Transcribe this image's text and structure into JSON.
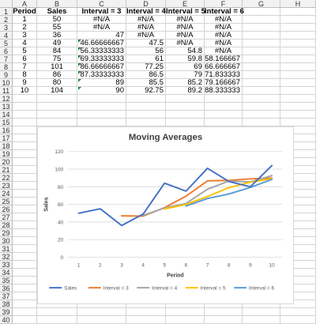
{
  "columns": [
    "A",
    "B",
    "C",
    "D",
    "E",
    "F",
    "G",
    "H"
  ],
  "rows": [
    "1",
    "2",
    "3",
    "4",
    "5",
    "6",
    "7",
    "8",
    "9",
    "10",
    "11",
    "12",
    "13",
    "14",
    "15",
    "16",
    "17",
    "18",
    "19",
    "20",
    "21",
    "22",
    "23",
    "24",
    "25",
    "26",
    "27",
    "28",
    "29",
    "30",
    "31",
    "32",
    "33",
    "34",
    "35",
    "36",
    "37",
    "38",
    "39",
    "40"
  ],
  "header": {
    "A": "Period",
    "B": "Sales",
    "C": "Interval = 3",
    "D": "Interval = 4",
    "E": "Interval = 5",
    "F": "Interval = 6"
  },
  "table": [
    {
      "A": "1",
      "B": "50",
      "C": "#N/A",
      "D": "#N/A",
      "E": "#N/A",
      "F": "#N/A"
    },
    {
      "A": "2",
      "B": "55",
      "C": "#N/A",
      "D": "#N/A",
      "E": "#N/A",
      "F": "#N/A"
    },
    {
      "A": "3",
      "B": "36",
      "C": "47",
      "D": "#N/A",
      "E": "#N/A",
      "F": "#N/A"
    },
    {
      "A": "4",
      "B": "49",
      "C": "46.66666667",
      "D": "47.5",
      "E": "#N/A",
      "F": "#N/A"
    },
    {
      "A": "5",
      "B": "84",
      "C": "56.33333333",
      "D": "56",
      "E": "54.8",
      "F": "#N/A"
    },
    {
      "A": "6",
      "B": "75",
      "C": "69.33333333",
      "D": "61",
      "E": "59.8",
      "F": "58.166667"
    },
    {
      "A": "7",
      "B": "101",
      "C": "86.66666667",
      "D": "77.25",
      "E": "69",
      "F": "66.666667"
    },
    {
      "A": "8",
      "B": "86",
      "C": "87.33333333",
      "D": "86.5",
      "E": "79",
      "F": "71.833333"
    },
    {
      "A": "9",
      "B": "80",
      "C": "89",
      "D": "85.5",
      "E": "85.2",
      "F": "79.166667"
    },
    {
      "A": "10",
      "B": "104",
      "C": "90",
      "D": "92.75",
      "E": "89.2",
      "F": "88.333333"
    }
  ],
  "chart_data": {
    "type": "line",
    "title": "Moving Averages",
    "xlabel": "Period",
    "ylabel": "Sales",
    "x": [
      1,
      2,
      3,
      4,
      5,
      6,
      7,
      8,
      9,
      10
    ],
    "ylim": [
      0,
      120
    ],
    "yticks": [
      0,
      20,
      40,
      60,
      80,
      100,
      120
    ],
    "grid": true,
    "legend_position": "bottom",
    "series": [
      {
        "name": "Sales",
        "color": "#4472c4",
        "values": [
          50,
          55,
          36,
          49,
          84,
          75,
          101,
          86,
          80,
          104
        ]
      },
      {
        "name": "Interval = 3",
        "color": "#ed7d31",
        "values": [
          null,
          null,
          47,
          46.66666667,
          56.33333333,
          69.33333333,
          86.66666667,
          87.33333333,
          89,
          90
        ]
      },
      {
        "name": "Interval = 4",
        "color": "#a5a5a5",
        "values": [
          null,
          null,
          null,
          47.5,
          56,
          61,
          77.25,
          86.5,
          85.5,
          92.75
        ]
      },
      {
        "name": "Interval = 5",
        "color": "#ffc000",
        "values": [
          null,
          null,
          null,
          null,
          54.8,
          59.8,
          69,
          79,
          85.2,
          89.2
        ]
      },
      {
        "name": "Interval = 6",
        "color": "#5b9bd5",
        "values": [
          null,
          null,
          null,
          null,
          null,
          58.166667,
          66.666667,
          71.833333,
          79.166667,
          88.333333
        ]
      }
    ]
  }
}
